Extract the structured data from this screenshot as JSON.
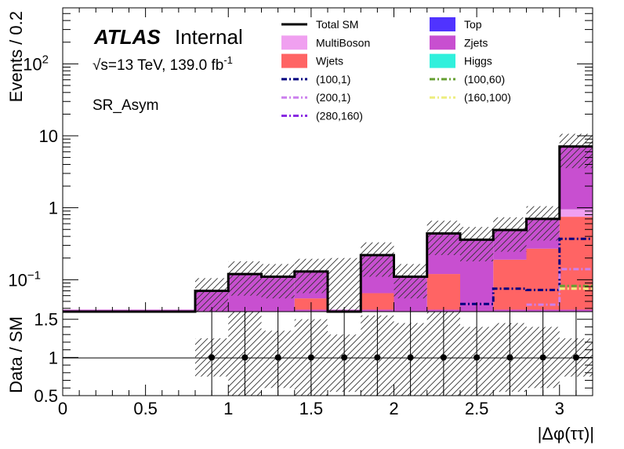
{
  "header": {
    "experiment": "ATLAS",
    "status": "Internal",
    "energy_prefix": "√s=13 TeV, 139.0 fb",
    "lumi_exp": "-1",
    "region": "SR_Asym"
  },
  "chart_data": [
    {
      "type": "bar",
      "subtype": "stacked-histogram-log",
      "ylabel": "Events / 0.2",
      "xlim": [
        0,
        3.2
      ],
      "ylim": [
        0.036,
        600
      ],
      "log_y": true,
      "y_ticks": [
        {
          "value": 0.1,
          "label": "10",
          "exp": "−1"
        },
        {
          "value": 1,
          "label": "1",
          "exp": ""
        },
        {
          "value": 10,
          "label": "10",
          "exp": ""
        },
        {
          "value": 100,
          "label": "10",
          "exp": "2"
        }
      ],
      "bin_edges": [
        0,
        0.2,
        0.4,
        0.6,
        0.8,
        1.0,
        1.2,
        1.4,
        1.6,
        1.8,
        2.0,
        2.2,
        2.4,
        2.6,
        2.8,
        3.0,
        3.2
      ],
      "legend": {
        "placement": "top-right",
        "entries": [
          {
            "label": "Total SM",
            "style": "line",
            "color": "#000000"
          },
          {
            "label": "Top",
            "style": "fill",
            "color": "#5033ff"
          },
          {
            "label": "MultiBoson",
            "style": "fill",
            "color": "#f0a0f0"
          },
          {
            "label": "Zjets",
            "style": "fill",
            "color": "#c84fd0"
          },
          {
            "label": "Wjets",
            "style": "fill",
            "color": "#ff6464"
          },
          {
            "label": "Higgs",
            "style": "fill",
            "color": "#30f0dc"
          },
          {
            "label": "(100,1)",
            "style": "dashdot",
            "color": "#000080"
          },
          {
            "label": "(100,60)",
            "style": "dashdot",
            "color": "#66a033"
          },
          {
            "label": "(200,1)",
            "style": "dashdot",
            "color": "#cc80ee"
          },
          {
            "label": "(160,100)",
            "style": "dashdot",
            "color": "#eeee80"
          },
          {
            "label": "(280,160)",
            "style": "dashdot",
            "color": "#8a2be2"
          }
        ]
      },
      "stack": [
        {
          "name": "Wjets",
          "color": "#ff6464",
          "values": [
            0,
            0,
            0,
            0,
            0,
            0,
            0,
            0.055,
            0,
            0.065,
            0,
            0.12,
            0,
            0.19,
            0.27,
            0.75
          ]
        },
        {
          "name": "MultiBoson",
          "color": "#f0a0f0",
          "values": [
            0,
            0,
            0,
            0,
            0,
            0,
            0,
            0,
            0,
            0,
            0,
            0,
            0,
            0,
            0,
            0.2
          ]
        },
        {
          "name": "Zjets",
          "color": "#c84fd0",
          "values": [
            0,
            0,
            0,
            0,
            0.07,
            0.12,
            0.11,
            0.075,
            0,
            0.155,
            0.11,
            0.32,
            0.36,
            0.3,
            0.43,
            6.2
          ]
        }
      ],
      "total_sm": [
        0,
        0,
        0,
        0,
        0.07,
        0.12,
        0.11,
        0.13,
        0,
        0.22,
        0.11,
        0.44,
        0.36,
        0.49,
        0.7,
        7.1
      ],
      "signals": [
        {
          "name": "(100,1)",
          "color": "#000080",
          "values": [
            0,
            0,
            0,
            0,
            0,
            0,
            0,
            0,
            0,
            0,
            0,
            0,
            0.046,
            0.075,
            0.072,
            0.37
          ]
        },
        {
          "name": "(200,1)",
          "color": "#cc80ee",
          "values": [
            0,
            0,
            0,
            0,
            0,
            0,
            0,
            0,
            0,
            0,
            0,
            0,
            0,
            0,
            0.045,
            0.14
          ]
        },
        {
          "name": "(100,60)",
          "color": "#66a033",
          "values": [
            0,
            0,
            0,
            0,
            0,
            0,
            0,
            0,
            0,
            0,
            0,
            0,
            0,
            0,
            0,
            0.082
          ]
        },
        {
          "name": "(160,100)",
          "color": "#eeee80",
          "values": [
            0,
            0,
            0,
            0,
            0,
            0,
            0,
            0,
            0,
            0,
            0,
            0,
            0,
            0,
            0,
            0.075
          ]
        }
      ]
    },
    {
      "type": "scatter",
      "subtype": "ratio",
      "xlabel": "|Δφ(ττ)|",
      "ylabel": "Data / SM",
      "xlim": [
        0,
        3.2
      ],
      "ylim": [
        0.5,
        1.6
      ],
      "y_ticks": [
        "0.5",
        "1",
        "1.5"
      ],
      "x_ticks": [
        "0",
        "0.5",
        "1",
        "1.5",
        "2",
        "2.5",
        "3"
      ],
      "x": [
        0.9,
        1.1,
        1.3,
        1.5,
        1.7,
        1.9,
        2.1,
        2.3,
        2.5,
        2.7,
        2.9,
        3.1
      ],
      "y": [
        1,
        1,
        1,
        1,
        1,
        1,
        1,
        1,
        1,
        1,
        1,
        1
      ]
    }
  ]
}
